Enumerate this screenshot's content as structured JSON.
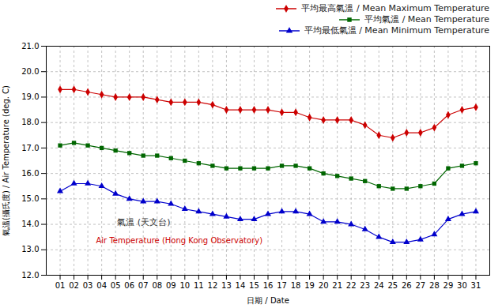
{
  "chart_data": {
    "type": "line",
    "xlabel": "日期 / Date",
    "ylabel": "氣溫(攝氏度) / Air Temperature (deg. C)",
    "x": [
      1,
      2,
      3,
      4,
      5,
      6,
      7,
      8,
      9,
      10,
      11,
      12,
      13,
      14,
      15,
      16,
      17,
      18,
      19,
      20,
      21,
      22,
      23,
      24,
      25,
      26,
      27,
      28,
      29,
      30,
      31
    ],
    "series": [
      {
        "name": "平均最高氣溫 / Mean Maximum Temperature",
        "color": "#cc0000",
        "marker": "diamond",
        "values": [
          19.3,
          19.3,
          19.2,
          19.1,
          19.0,
          19.0,
          19.0,
          18.9,
          18.8,
          18.8,
          18.8,
          18.7,
          18.5,
          18.5,
          18.5,
          18.5,
          18.4,
          18.4,
          18.2,
          18.1,
          18.1,
          18.1,
          17.9,
          17.5,
          17.4,
          17.6,
          17.6,
          17.8,
          18.3,
          18.5,
          18.6
        ]
      },
      {
        "name": "平均氣溫 / Mean Temperature",
        "color": "#006600",
        "marker": "square",
        "values": [
          17.1,
          17.2,
          17.1,
          17.0,
          16.9,
          16.8,
          16.7,
          16.7,
          16.6,
          16.5,
          16.4,
          16.3,
          16.2,
          16.2,
          16.2,
          16.2,
          16.3,
          16.3,
          16.2,
          16.0,
          15.9,
          15.8,
          15.7,
          15.5,
          15.4,
          15.4,
          15.5,
          15.6,
          16.2,
          16.3,
          16.4
        ]
      },
      {
        "name": "平均最低氣溫 / Mean Minimum Temperature",
        "color": "#0000cc",
        "marker": "triangle",
        "values": [
          15.3,
          15.6,
          15.6,
          15.5,
          15.2,
          15.0,
          14.9,
          14.9,
          14.8,
          14.6,
          14.5,
          14.4,
          14.3,
          14.2,
          14.2,
          14.4,
          14.5,
          14.5,
          14.4,
          14.1,
          14.1,
          14.0,
          13.8,
          13.5,
          13.3,
          13.3,
          13.4,
          13.6,
          14.2,
          14.4,
          14.5
        ]
      }
    ],
    "xlim": [
      0,
      32
    ],
    "xticks": [
      {
        "value": 1,
        "label": "01"
      },
      {
        "value": 2,
        "label": "02"
      },
      {
        "value": 3,
        "label": "03"
      },
      {
        "value": 4,
        "label": "04"
      },
      {
        "value": 5,
        "label": "05"
      },
      {
        "value": 6,
        "label": "06"
      },
      {
        "value": 7,
        "label": "07"
      },
      {
        "value": 8,
        "label": "08"
      },
      {
        "value": 9,
        "label": "09"
      },
      10,
      11,
      12,
      13,
      14,
      15,
      16,
      17,
      18,
      19,
      20,
      21,
      22,
      23,
      24,
      25,
      26,
      27,
      28,
      29,
      30,
      31
    ],
    "ylim": [
      12.0,
      21.0
    ],
    "yticks": [
      {
        "value": 12.0,
        "label": "12.0"
      },
      {
        "value": 13.0,
        "label": "13.0"
      },
      {
        "value": 14.0,
        "label": "14.0"
      },
      {
        "value": 15.0,
        "label": "15.0"
      },
      {
        "value": 16.0,
        "label": "16.0"
      },
      {
        "value": 17.0,
        "label": "17.0"
      },
      {
        "value": 18.0,
        "label": "18.0"
      },
      {
        "value": 19.0,
        "label": "19.0"
      },
      {
        "value": 20.0,
        "label": "20.0"
      },
      {
        "value": 21.0,
        "label": "21.0"
      }
    ],
    "annotations": [
      "氣溫 (天文台)",
      "Air Temperature (Hong Kong Observatory)"
    ],
    "grid": true,
    "legend": "upper right"
  }
}
